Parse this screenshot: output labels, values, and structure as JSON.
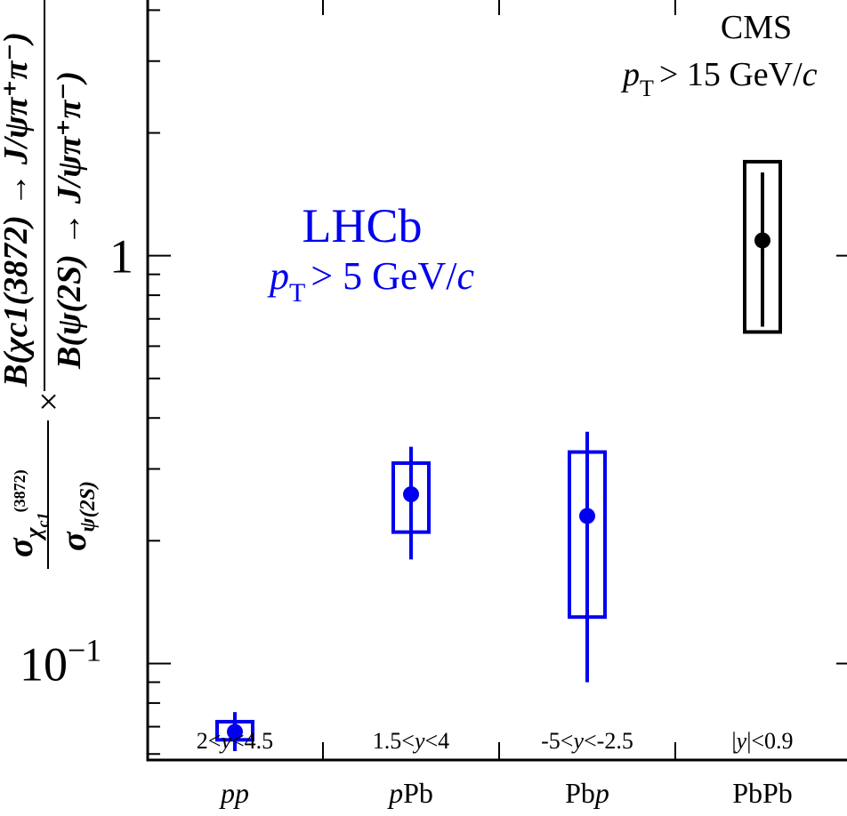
{
  "chart_data": {
    "type": "scatter",
    "yscale": "log",
    "ylim": [
      0.058,
      4.3
    ],
    "ylabel": {
      "ratio_sigma": "σ",
      "num_sub_main": "χ",
      "num_sub_sub": "c1",
      "num_sub_tail": "(3872)",
      "den_sub": "ψ(2S)",
      "times": "×",
      "br_num": "B(χc1(3872) → J/ψπ⁺π⁻)",
      "br_den": "B(ψ(2S) → J/ψπ⁺π⁻)"
    },
    "yticks": [
      {
        "value": 1,
        "label": "1"
      },
      {
        "value": 0.1,
        "label": "10",
        "exp": "−1"
      }
    ],
    "categories": [
      {
        "label_pre": "",
        "label_ital": "pp",
        "label_post": "",
        "rapidity": "2<y<4.5"
      },
      {
        "label_pre": "",
        "label_ital": "p",
        "label_post": "Pb",
        "rapidity": "1.5<y<4"
      },
      {
        "label_pre": "Pb",
        "label_ital": "p",
        "label_post": "",
        "rapidity": "-5<y<-2.5"
      },
      {
        "label_pre": "PbPb",
        "label_ital": "",
        "label_post": "",
        "rapidity": "|y|<0.9"
      }
    ],
    "series": [
      {
        "name": "LHCb",
        "color": "#0000ee",
        "points": [
          {
            "category": 0,
            "y": 0.068,
            "stat": [
              0.061,
              0.076
            ],
            "syst": [
              0.065,
              0.072
            ]
          },
          {
            "category": 1,
            "y": 0.26,
            "stat": [
              0.18,
              0.34
            ],
            "syst": [
              0.21,
              0.31
            ]
          },
          {
            "category": 2,
            "y": 0.23,
            "stat": [
              0.09,
              0.37
            ],
            "syst": [
              0.13,
              0.33
            ]
          }
        ]
      },
      {
        "name": "CMS",
        "color": "#000000",
        "points": [
          {
            "category": 3,
            "y": 1.09,
            "stat": [
              0.67,
              1.6
            ],
            "syst": [
              0.65,
              1.7
            ]
          }
        ]
      }
    ],
    "annotations": {
      "lhcb_title": "LHCb",
      "lhcb_cut": "> 5 GeV/",
      "cms_title": "CMS",
      "cms_cut": "> 15 GeV/",
      "pt_p": "p",
      "pt_sub": "T",
      "unit_c": "c"
    }
  }
}
